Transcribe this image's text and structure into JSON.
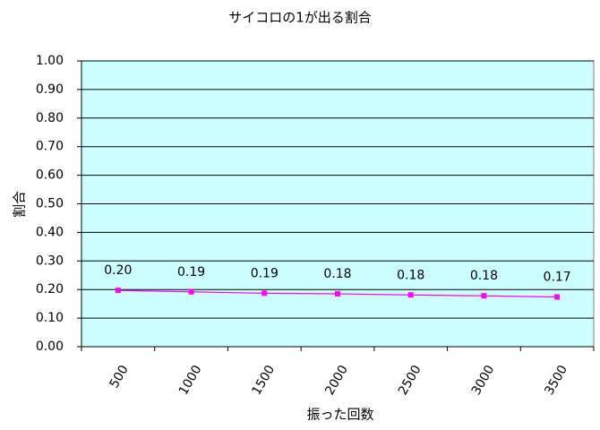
{
  "chart_data": {
    "type": "line",
    "title": "サイコロの1が出る割合",
    "x_label": "振った回数",
    "y_label": "割合",
    "categories": [
      "500",
      "1000",
      "1500",
      "2000",
      "2500",
      "3000",
      "3500"
    ],
    "series": [
      {
        "name": "割合",
        "color": "#ff00ff",
        "values": [
          0.197,
          0.192,
          0.187,
          0.185,
          0.181,
          0.178,
          0.174
        ],
        "value_labels": [
          "0.20",
          "0.19",
          "0.19",
          "0.18",
          "0.18",
          "0.18",
          "0.17"
        ]
      }
    ],
    "ylim": [
      0,
      1
    ],
    "yticks": [
      {
        "value": 0,
        "label": "0.00"
      },
      {
        "value": 0.1,
        "label": "0.10"
      },
      {
        "value": 0.2,
        "label": "0.20"
      },
      {
        "value": 0.3,
        "label": "0.30"
      },
      {
        "value": 0.4,
        "label": "0.40"
      },
      {
        "value": 0.5,
        "label": "0.50"
      },
      {
        "value": 0.6,
        "label": "0.60"
      },
      {
        "value": 0.7,
        "label": "0.70"
      },
      {
        "value": 0.8,
        "label": "0.80"
      },
      {
        "value": 0.9,
        "label": "0.90"
      },
      {
        "value": 1,
        "label": "1.00"
      }
    ],
    "grid": true,
    "plot_background": "#ccffff"
  }
}
